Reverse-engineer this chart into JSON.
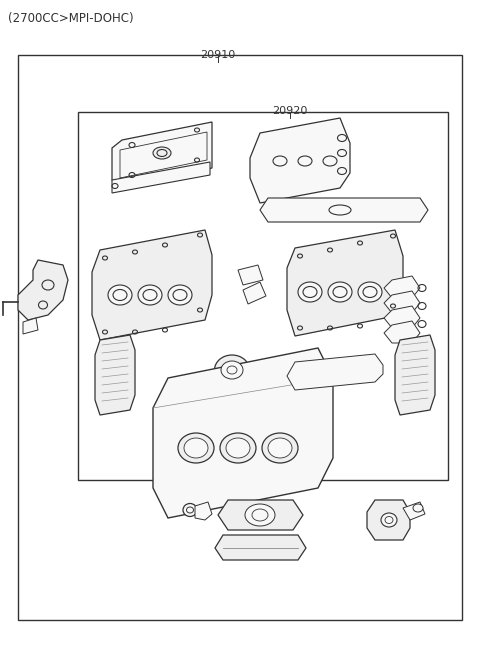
{
  "title": "(2700CC>MPI-DOHC)",
  "label_20910": "20910",
  "label_20920": "20920",
  "bg_color": "#ffffff",
  "line_color": "#333333",
  "part_fill": "#f8f8f8",
  "part_fill2": "#efefef"
}
